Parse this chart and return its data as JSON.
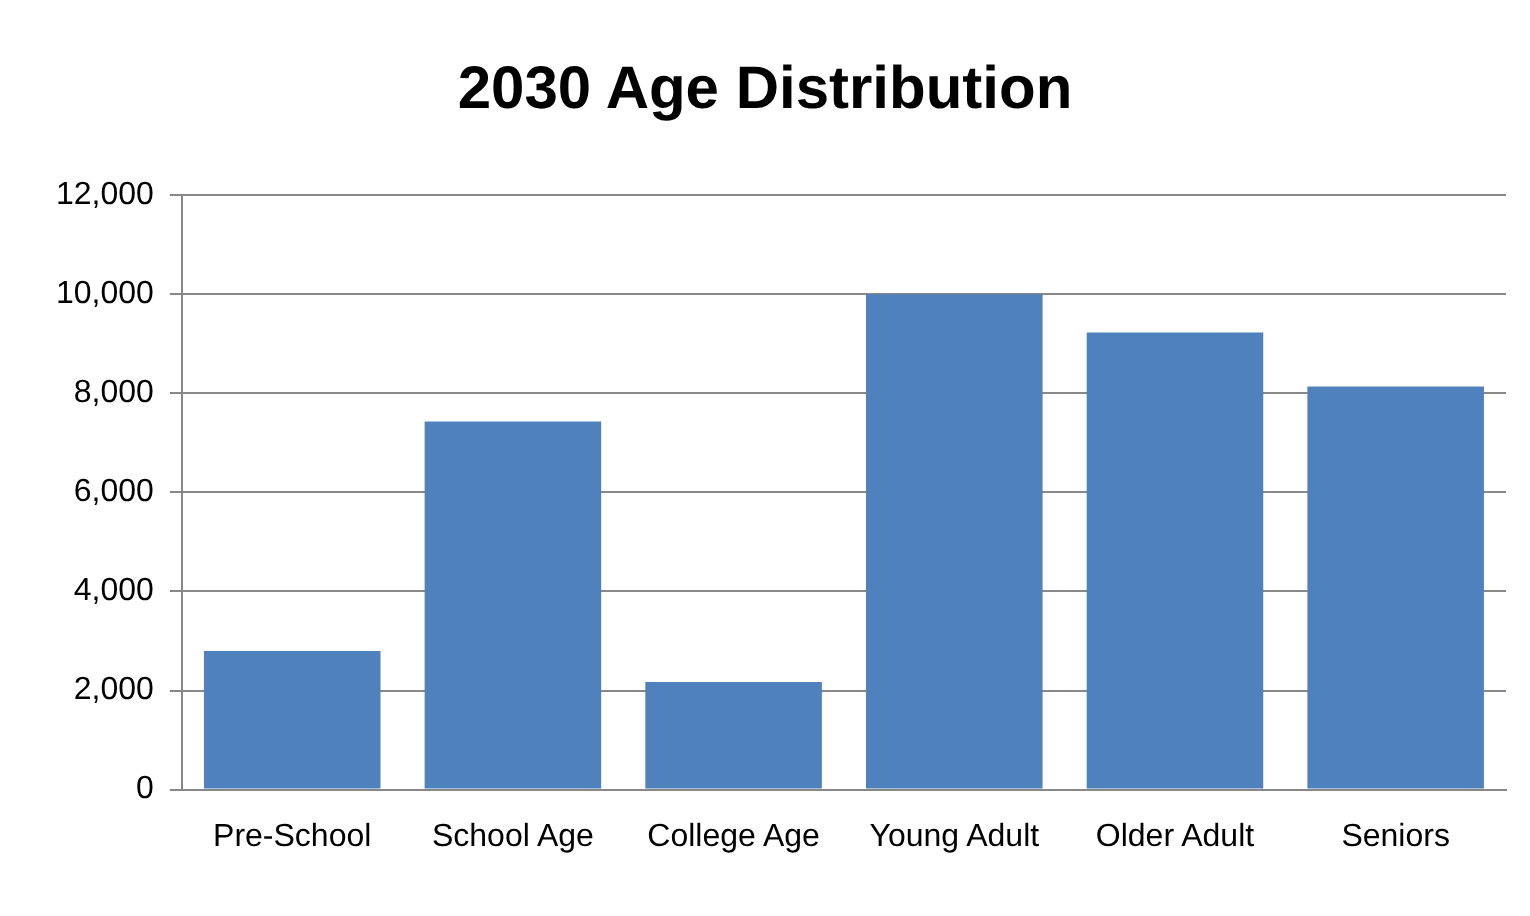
{
  "chart_data": {
    "type": "bar",
    "title": "2030 Age Distribution",
    "categories": [
      "Pre-School",
      "School Age",
      "College Age",
      "Young Adult",
      "Older Adult",
      "Seniors"
    ],
    "values": [
      2800,
      7430,
      2170,
      10000,
      9230,
      8140
    ],
    "color": "#4f81bd",
    "ylim": [
      0,
      12000
    ],
    "yticks": [
      0,
      {
        "value": 2000,
        "label": "2,000"
      },
      {
        "value": 4000,
        "label": "4,000"
      },
      {
        "value": 6000,
        "label": "6,000"
      },
      {
        "value": 8000,
        "label": "8,000"
      },
      {
        "value": 10000,
        "label": "10,000"
      },
      {
        "value": 12000,
        "label": "12,000"
      }
    ],
    "grid": "y",
    "legend": false
  }
}
